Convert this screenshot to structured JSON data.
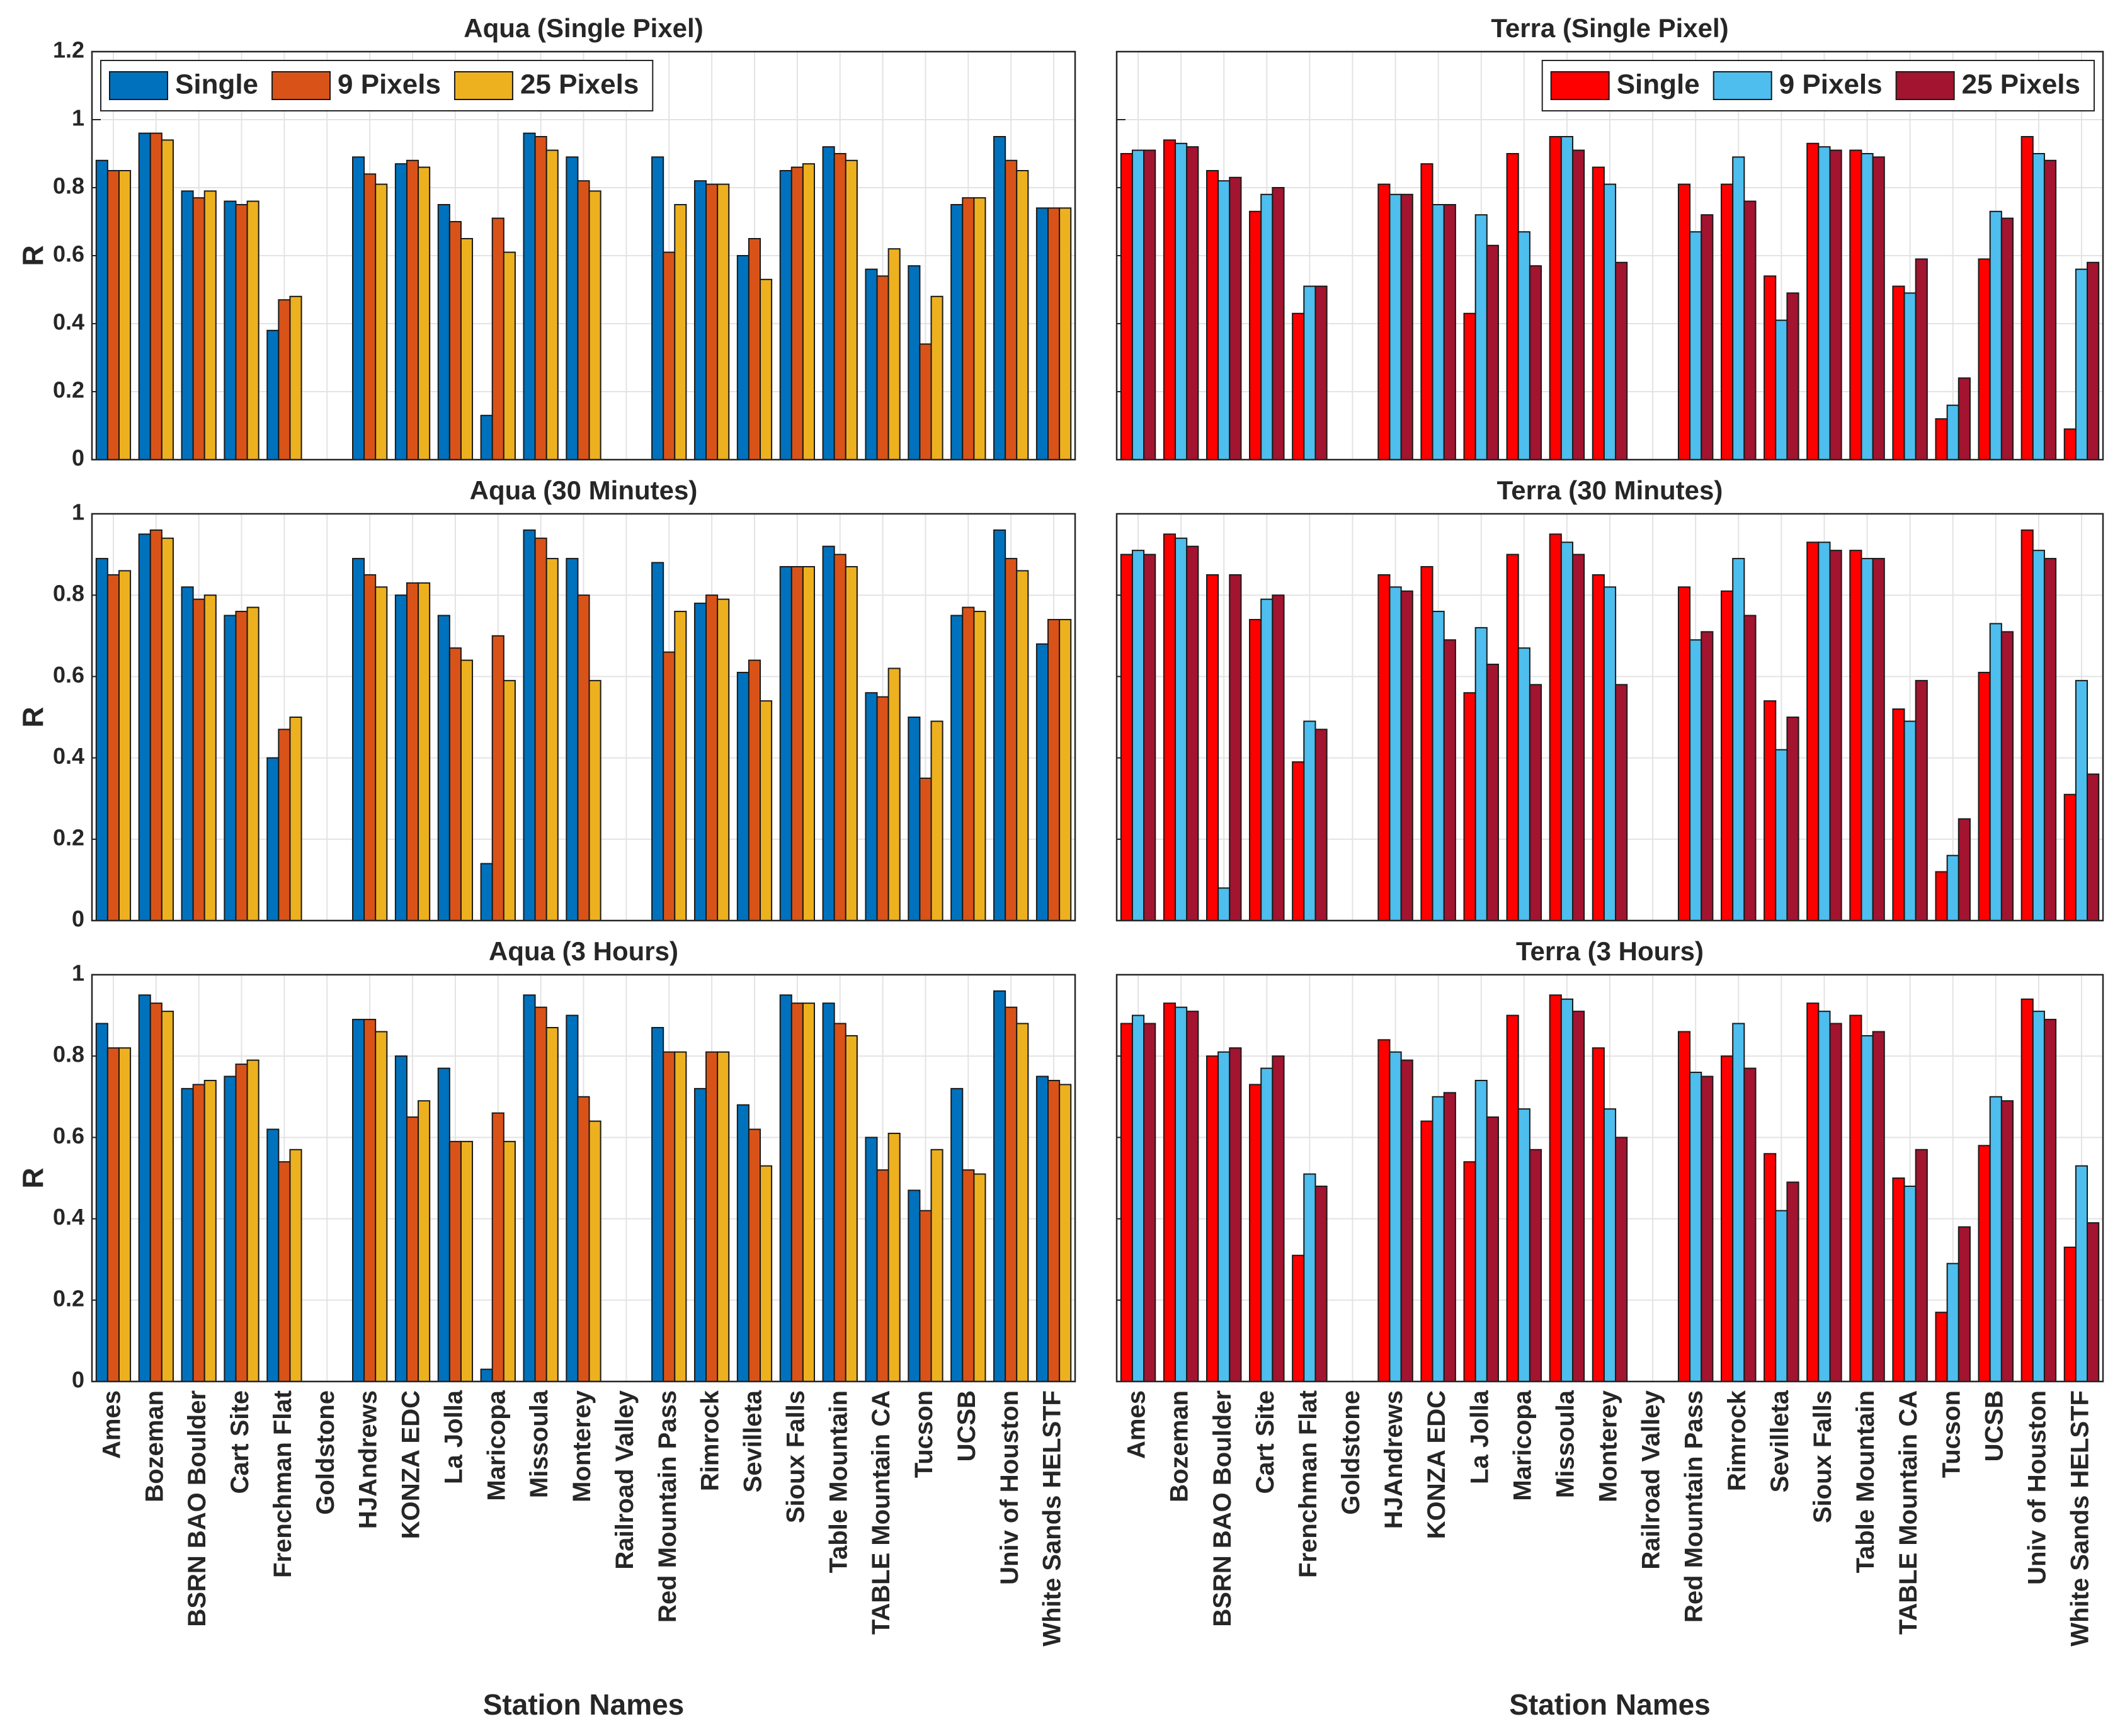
{
  "chart_data": [
    {
      "type": "bar",
      "title": "Aqua (Single Pixel)",
      "ylabel": "R",
      "ylim": [
        0,
        1.2
      ],
      "yticks": [
        0,
        0.2,
        0.4,
        0.6,
        0.8,
        1,
        1.2
      ],
      "grid": true,
      "legend": "northwest",
      "series": [
        {
          "name": "Single",
          "color": "#0072BD",
          "values": [
            0.88,
            0.96,
            0.79,
            0.76,
            0.38,
            null,
            0.89,
            0.87,
            0.75,
            0.13,
            0.96,
            0.89,
            null,
            0.89,
            0.82,
            0.6,
            0.85,
            0.92,
            0.56,
            0.57,
            0.75,
            0.95,
            0.74
          ]
        },
        {
          "name": "9 Pixels",
          "color": "#D95319",
          "values": [
            0.85,
            0.96,
            0.77,
            0.75,
            0.47,
            null,
            0.84,
            0.88,
            0.7,
            0.71,
            0.95,
            0.82,
            null,
            0.61,
            0.81,
            0.65,
            0.86,
            0.9,
            0.54,
            0.34,
            0.77,
            0.88,
            0.74
          ]
        },
        {
          "name": "25 Pixels",
          "color": "#EDB120",
          "values": [
            0.85,
            0.94,
            0.79,
            0.76,
            0.48,
            null,
            0.81,
            0.86,
            0.65,
            0.61,
            0.91,
            0.79,
            null,
            0.75,
            0.81,
            0.53,
            0.87,
            0.88,
            0.62,
            0.48,
            0.77,
            0.85,
            0.74
          ]
        }
      ]
    },
    {
      "type": "bar",
      "title": "Terra (Single Pixel)",
      "ylim": [
        0,
        1.2
      ],
      "yticks": [
        0,
        0.2,
        0.4,
        0.6,
        0.8,
        1,
        1.2
      ],
      "ytick_labels": false,
      "grid": true,
      "legend": "northeast",
      "series": [
        {
          "name": "Single",
          "color": "#FF0000",
          "values": [
            0.9,
            0.94,
            0.85,
            0.73,
            0.43,
            null,
            0.81,
            0.87,
            0.43,
            0.9,
            0.95,
            0.86,
            null,
            0.81,
            0.81,
            0.54,
            0.93,
            0.91,
            0.51,
            0.12,
            0.59,
            0.95,
            0.09
          ]
        },
        {
          "name": "9 Pixels",
          "color": "#4DBEEE",
          "values": [
            0.91,
            0.93,
            0.82,
            0.78,
            0.51,
            null,
            0.78,
            0.75,
            0.72,
            0.67,
            0.95,
            0.81,
            null,
            0.67,
            0.89,
            0.41,
            0.92,
            0.9,
            0.49,
            0.16,
            0.73,
            0.9,
            0.56
          ]
        },
        {
          "name": "25 Pixels",
          "color": "#A2142F",
          "values": [
            0.91,
            0.92,
            0.83,
            0.8,
            0.51,
            null,
            0.78,
            0.75,
            0.63,
            0.57,
            0.91,
            0.58,
            null,
            0.72,
            0.76,
            0.49,
            0.91,
            0.89,
            0.59,
            0.24,
            0.71,
            0.88,
            0.58
          ]
        }
      ]
    },
    {
      "type": "bar",
      "title": "Aqua (30 Minutes)",
      "ylabel": "R",
      "ylim": [
        0,
        1
      ],
      "yticks": [
        0,
        0.2,
        0.4,
        0.6,
        0.8,
        1
      ],
      "grid": true,
      "series": [
        {
          "color": "#0072BD",
          "values": [
            0.89,
            0.95,
            0.82,
            0.75,
            0.4,
            null,
            0.89,
            0.8,
            0.75,
            0.14,
            0.96,
            0.89,
            null,
            0.88,
            0.78,
            0.61,
            0.87,
            0.92,
            0.56,
            0.5,
            0.75,
            0.96,
            0.68
          ]
        },
        {
          "color": "#D95319",
          "values": [
            0.85,
            0.96,
            0.79,
            0.76,
            0.47,
            null,
            0.85,
            0.83,
            0.67,
            0.7,
            0.94,
            0.8,
            null,
            0.66,
            0.8,
            0.64,
            0.87,
            0.9,
            0.55,
            0.35,
            0.77,
            0.89,
            0.74
          ]
        },
        {
          "color": "#EDB120",
          "values": [
            0.86,
            0.94,
            0.8,
            0.77,
            0.5,
            null,
            0.82,
            0.83,
            0.64,
            0.59,
            0.89,
            0.59,
            null,
            0.76,
            0.79,
            0.54,
            0.87,
            0.87,
            0.62,
            0.49,
            0.76,
            0.86,
            0.74
          ]
        }
      ]
    },
    {
      "type": "bar",
      "title": "Terra (30 Minutes)",
      "ylim": [
        0,
        1
      ],
      "yticks": [
        0,
        0.2,
        0.4,
        0.6,
        0.8,
        1
      ],
      "ytick_labels": false,
      "grid": true,
      "series": [
        {
          "color": "#FF0000",
          "values": [
            0.9,
            0.95,
            0.85,
            0.74,
            0.39,
            null,
            0.85,
            0.87,
            0.56,
            0.9,
            0.95,
            0.85,
            null,
            0.82,
            0.81,
            0.54,
            0.93,
            0.91,
            0.52,
            0.12,
            0.61,
            0.96,
            0.31
          ]
        },
        {
          "color": "#4DBEEE",
          "values": [
            0.91,
            0.94,
            0.08,
            0.79,
            0.49,
            null,
            0.82,
            0.76,
            0.72,
            0.67,
            0.93,
            0.82,
            null,
            0.69,
            0.89,
            0.42,
            0.93,
            0.89,
            0.49,
            0.16,
            0.73,
            0.91,
            0.59
          ]
        },
        {
          "color": "#A2142F",
          "values": [
            0.9,
            0.92,
            0.85,
            0.8,
            0.47,
            null,
            0.81,
            0.69,
            0.63,
            0.58,
            0.9,
            0.58,
            null,
            0.71,
            0.75,
            0.5,
            0.91,
            0.89,
            0.59,
            0.25,
            0.71,
            0.89,
            0.36
          ]
        }
      ]
    },
    {
      "type": "bar",
      "title": "Aqua (3 Hours)",
      "ylabel": "R",
      "xlabel": "Station Names",
      "ylim": [
        0,
        1
      ],
      "yticks": [
        0,
        0.2,
        0.4,
        0.6,
        0.8,
        1
      ],
      "grid": true,
      "categories": [
        "Ames",
        "Bozeman",
        "BSRN BAO Boulder",
        "Cart Site",
        "Frenchman Flat",
        "Goldstone",
        "HJAndrews",
        "KONZA EDC",
        "La Jolla",
        "Maricopa",
        "Missoula",
        "Monterey",
        "Railroad Valley",
        "Red Mountain Pass",
        "Rimrock",
        "Sevilleta",
        "Sioux Falls",
        "Table Mountain",
        "TABLE Mountain CA",
        "Tucson",
        "UCSB",
        "Univ of Houston",
        "White Sands HELSTF"
      ],
      "series": [
        {
          "color": "#0072BD",
          "values": [
            0.88,
            0.95,
            0.72,
            0.75,
            0.62,
            null,
            0.89,
            0.8,
            0.77,
            0.03,
            0.95,
            0.9,
            null,
            0.87,
            0.72,
            0.68,
            0.95,
            0.93,
            0.6,
            0.47,
            0.72,
            0.96,
            0.75
          ]
        },
        {
          "color": "#D95319",
          "values": [
            0.82,
            0.93,
            0.73,
            0.78,
            0.54,
            null,
            0.89,
            0.65,
            0.59,
            0.66,
            0.92,
            0.7,
            null,
            0.81,
            0.81,
            0.62,
            0.93,
            0.88,
            0.52,
            0.42,
            0.52,
            0.92,
            0.74
          ]
        },
        {
          "color": "#EDB120",
          "values": [
            0.82,
            0.91,
            0.74,
            0.79,
            0.57,
            null,
            0.86,
            0.69,
            0.59,
            0.59,
            0.87,
            0.64,
            null,
            0.81,
            0.81,
            0.53,
            0.93,
            0.85,
            0.61,
            0.57,
            0.51,
            0.88,
            0.73
          ]
        }
      ]
    },
    {
      "type": "bar",
      "title": "Terra (3 Hours)",
      "xlabel": "Station Names",
      "ylim": [
        0,
        1
      ],
      "yticks": [
        0,
        0.2,
        0.4,
        0.6,
        0.8,
        1
      ],
      "ytick_labels": false,
      "grid": true,
      "categories": [
        "Ames",
        "Bozeman",
        "BSRN BAO Boulder",
        "Cart Site",
        "Frenchman Flat",
        "Goldstone",
        "HJAndrews",
        "KONZA EDC",
        "La Jolla",
        "Maricopa",
        "Missoula",
        "Monterey",
        "Railroad Valley",
        "Red Mountain Pass",
        "Rimrock",
        "Sevilleta",
        "Sioux Falls",
        "Table Mountain",
        "TABLE Mountain CA",
        "Tucson",
        "UCSB",
        "Univ of Houston",
        "White Sands HELSTF"
      ],
      "series": [
        {
          "color": "#FF0000",
          "values": [
            0.88,
            0.93,
            0.8,
            0.73,
            0.31,
            null,
            0.84,
            0.64,
            0.54,
            0.9,
            0.95,
            0.82,
            null,
            0.86,
            0.8,
            0.56,
            0.93,
            0.9,
            0.5,
            0.17,
            0.58,
            0.94,
            0.33
          ]
        },
        {
          "color": "#4DBEEE",
          "values": [
            0.9,
            0.92,
            0.81,
            0.77,
            0.51,
            null,
            0.81,
            0.7,
            0.74,
            0.67,
            0.94,
            0.67,
            null,
            0.76,
            0.88,
            0.42,
            0.91,
            0.85,
            0.48,
            0.29,
            0.7,
            0.91,
            0.53
          ]
        },
        {
          "color": "#A2142F",
          "values": [
            0.88,
            0.91,
            0.82,
            0.8,
            0.48,
            null,
            0.79,
            0.71,
            0.65,
            0.57,
            0.91,
            0.6,
            null,
            0.75,
            0.77,
            0.49,
            0.88,
            0.86,
            0.57,
            0.38,
            0.69,
            0.89,
            0.39
          ]
        }
      ]
    }
  ]
}
